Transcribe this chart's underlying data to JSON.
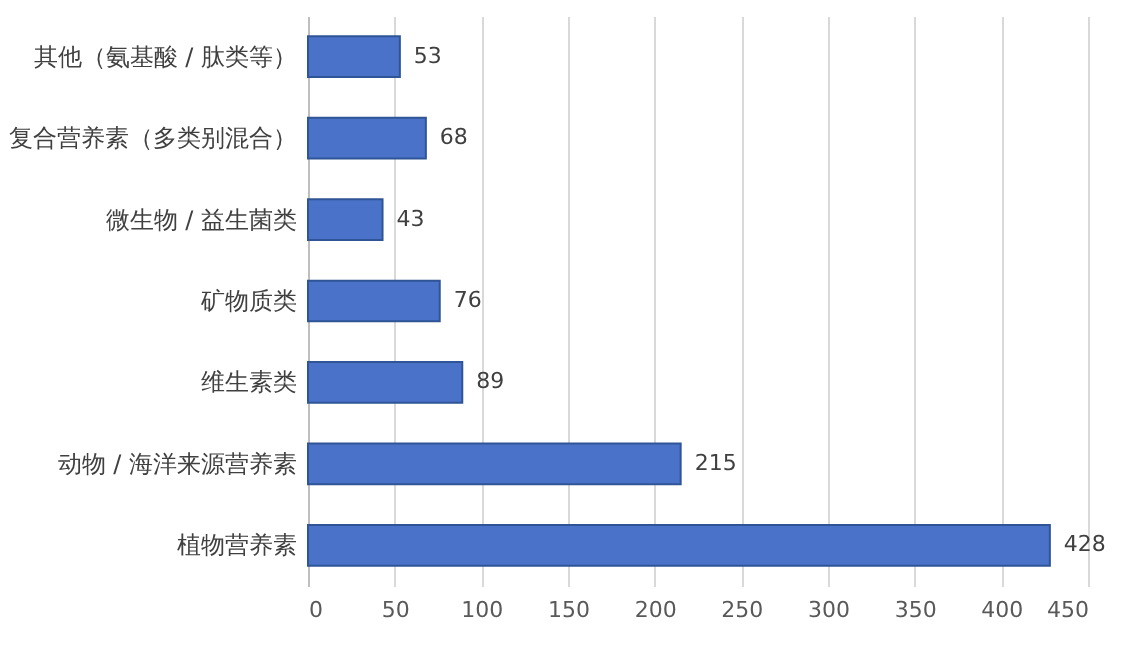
{
  "chart_data": {
    "type": "bar",
    "orientation": "horizontal",
    "categories": [
      "其他（氨基酸 / 肽类等）",
      "复合营养素（多类别混合）",
      "微生物 / 益生菌类",
      "矿物质类",
      "维生素类",
      "动物 / 海洋来源营养素",
      "植物营养素"
    ],
    "values": [
      53,
      68,
      43,
      76,
      89,
      215,
      428
    ],
    "color": "#4a72c8",
    "xlim": [
      0,
      450
    ],
    "xticks": [
      0,
      50,
      100,
      150,
      200,
      250,
      300,
      350,
      400,
      450
    ],
    "grid": "x",
    "data_labels": true
  }
}
